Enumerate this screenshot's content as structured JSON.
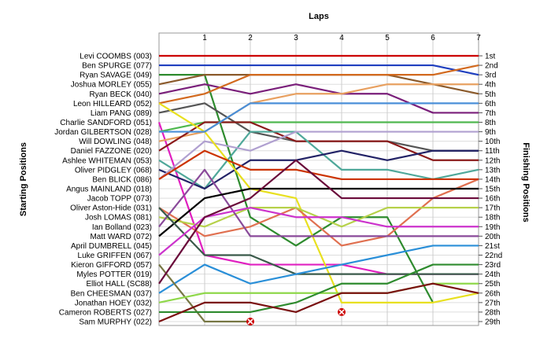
{
  "chart_data": {
    "type": "line",
    "title": "",
    "xlabel": "Laps",
    "ylabel_left": "Starting Positions",
    "ylabel_right": "Finishing Positions",
    "x": [
      0,
      1,
      2,
      3,
      4,
      5,
      6,
      7
    ],
    "x_tick_labels": [
      "1",
      "2",
      "3",
      "4",
      "5",
      "6",
      "7"
    ],
    "y_range": [
      1,
      29
    ],
    "grid": true,
    "starting_labels": [
      "Levi COOMBS (003)",
      "Ben SPURGE (077)",
      "Ryan SAVAGE (049)",
      "Joshua MORLEY (055)",
      "Ryan BECK (040)",
      "Leon HILLEARD (052)",
      "Liam PANG (089)",
      "Charlie SANDFORD (051)",
      "Jordan GILBERTSON (028)",
      "Will DOWLING (048)",
      "Daniel FAZZONE (020)",
      "Ashlee WHITEMAN (053)",
      "Oliver PIDGLEY (068)",
      "Ben BLICK (086)",
      "Angus MAINLAND (018)",
      "Jacob TOPP (073)",
      "Oliver Aston-Hide (031)",
      "Josh LOMAS (081)",
      "Ian Bolland (023)",
      "Matt WARD (072)",
      "April DUMBRELL (045)",
      "Luke GRIFFEN (067)",
      "Kieron GIFFORD (057)",
      "Myles POTTER (019)",
      "Elliot HALL (SC88)",
      "Ben CHEESMAN (037)",
      "Jonathan HOEY (032)",
      "Cameron ROBERTS (027)",
      "Sam MURPHY (022)"
    ],
    "finishing_labels": [
      "1st",
      "2nd",
      "3rd",
      "4th",
      "5th",
      "6th",
      "7th",
      "8th",
      "9th",
      "10th",
      "11th",
      "12th",
      "13th",
      "14th",
      "15th",
      "16th",
      "17th",
      "18th",
      "19th",
      "20th",
      "21st",
      "22nd",
      "23rd",
      "24th",
      "25th",
      "26th",
      "27th",
      "28th",
      "29th"
    ],
    "series": [
      {
        "color": "#cc0000",
        "values": [
          1,
          1,
          1,
          1,
          1,
          1,
          1,
          1
        ]
      },
      {
        "color": "#1f3fbf",
        "values": [
          2,
          2,
          2,
          2,
          2,
          2,
          2,
          3
        ]
      },
      {
        "color": "#2e8b2e",
        "values": [
          3,
          3,
          18,
          21,
          18,
          18,
          27,
          null
        ]
      },
      {
        "color": "#8b5a2b",
        "values": [
          4,
          3,
          3,
          3,
          3,
          3,
          4,
          5
        ]
      },
      {
        "color": "#7a1f7a",
        "values": [
          5,
          4,
          5,
          4,
          5,
          5,
          7,
          7
        ]
      },
      {
        "color": "#d2691e",
        "values": [
          6,
          5,
          3,
          3,
          3,
          3,
          3,
          2
        ]
      },
      {
        "color": "#555555",
        "values": [
          7,
          6,
          9,
          10,
          10,
          10,
          11,
          11
        ]
      },
      {
        "color": "#e020c0",
        "values": [
          8,
          22,
          23,
          23,
          23,
          24,
          24,
          24
        ]
      },
      {
        "color": "#4fb84f",
        "values": [
          9,
          8,
          8,
          8,
          8,
          8,
          8,
          8
        ]
      },
      {
        "color": "#e8a060",
        "values": [
          10,
          9,
          6,
          5,
          5,
          4,
          4,
          4
        ]
      },
      {
        "color": "#8b1a1a",
        "values": [
          11,
          8,
          8,
          10,
          10,
          10,
          12,
          12
        ]
      },
      {
        "color": "#4fa89a",
        "values": [
          12,
          15,
          9,
          9,
          13,
          13,
          14,
          13
        ]
      },
      {
        "color": "#222266",
        "values": [
          13,
          15,
          12,
          12,
          11,
          12,
          11,
          11
        ]
      },
      {
        "color": "#b0a0d0",
        "values": [
          14,
          10,
          11,
          9,
          9,
          9,
          9,
          9
        ]
      },
      {
        "color": "#e8e020",
        "values": [
          6,
          9,
          15,
          16,
          27,
          27,
          27,
          26
        ]
      },
      {
        "color": "#4a8fd8",
        "values": [
          9,
          9,
          6,
          6,
          6,
          6,
          6,
          6
        ]
      },
      {
        "color": "#e07050",
        "values": [
          17,
          20,
          19,
          17,
          21,
          20,
          16,
          14
        ]
      },
      {
        "color": "#b6d14a",
        "values": [
          18,
          19,
          17,
          17,
          19,
          17,
          17,
          17
        ]
      },
      {
        "color": "#8a4a9a",
        "values": [
          19,
          13,
          20,
          20,
          20,
          20,
          20,
          20
        ]
      },
      {
        "color": "#000000",
        "values": [
          20,
          16,
          15,
          15,
          15,
          15,
          15,
          15
        ]
      },
      {
        "color": "#cc3300",
        "values": [
          14,
          11,
          13,
          13,
          14,
          14,
          14,
          14
        ]
      },
      {
        "color": "#3a5a4a",
        "values": [
          17,
          22,
          22,
          24,
          24,
          24,
          24,
          24
        ]
      },
      {
        "color": "#cc33cc",
        "values": [
          22,
          18,
          17,
          18,
          18,
          19,
          19,
          19
        ]
      },
      {
        "color": "#2a8fd8",
        "values": [
          26,
          23,
          25,
          24,
          23,
          22,
          21,
          21
        ]
      },
      {
        "color": "#777744",
        "values": [
          23,
          29,
          29,
          null,
          null,
          null,
          null,
          null
        ]
      },
      {
        "color": "#6a0a3a",
        "values": [
          25,
          18,
          16,
          12,
          16,
          16,
          16,
          16
        ]
      },
      {
        "color": "#8fd84a",
        "values": [
          27,
          26,
          26,
          26,
          26,
          26,
          25,
          25
        ]
      },
      {
        "color": "#2e8b2e",
        "values": [
          28,
          28,
          28,
          27,
          25,
          25,
          23,
          23
        ]
      },
      {
        "color": "#7a1010",
        "values": [
          29,
          27,
          27,
          28,
          26,
          26,
          25,
          26
        ]
      }
    ],
    "retirements": [
      {
        "lap": 2,
        "position": 29
      },
      {
        "lap": 4,
        "position": 28
      }
    ]
  }
}
